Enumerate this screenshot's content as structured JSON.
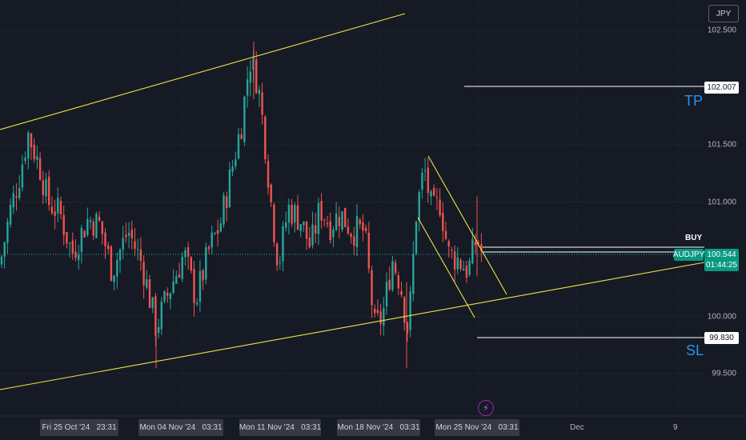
{
  "currency_button": "JPY",
  "symbol": "AUDJPY",
  "countdown": "01:44:25",
  "current_price": "100.544",
  "buy_label": "BUY",
  "tp_label": "TP",
  "sl_label": "SL",
  "tp_price": "102.007",
  "sl_price": "99.830",
  "colors": {
    "background": "#161a25",
    "bull": "#26a69a",
    "bear": "#ef5350",
    "trendline": "#f0e442",
    "accent_blue": "#2196f3",
    "price_green": "#089981"
  },
  "y_axis_labels": [
    "102.500",
    "101.500",
    "101.000",
    "100.000",
    "99.500"
  ],
  "x_axis_labels": [
    "Fri 25 Oct '24   23:31",
    "Mon 04 Nov '24   03:31",
    "Mon 11 Nov '24   03:31",
    "Mon 18 Nov '24   03:31",
    "Mon 25 Nov '24   03:31",
    "Dec",
    "9"
  ],
  "chart_data": {
    "type": "candlestick",
    "symbol": "AUDJPY",
    "ylim": [
      99.2,
      102.8
    ],
    "y_ticks": [
      102.5,
      101.5,
      101.0,
      100.0,
      99.5
    ],
    "grid": true,
    "last_price": 100.544,
    "take_profit": 102.007,
    "stop_loss": 99.83,
    "close_path": [
      [
        0,
        100.45
      ],
      [
        12,
        100.9
      ],
      [
        25,
        101.25
      ],
      [
        35,
        101.6
      ],
      [
        50,
        101.3
      ],
      [
        60,
        101.0
      ],
      [
        75,
        100.9
      ],
      [
        90,
        100.55
      ],
      [
        110,
        100.85
      ],
      [
        125,
        100.8
      ],
      [
        140,
        100.4
      ],
      [
        160,
        100.75
      ],
      [
        178,
        100.45
      ],
      [
        195,
        99.9
      ],
      [
        210,
        100.2
      ],
      [
        230,
        100.55
      ],
      [
        245,
        100.15
      ],
      [
        262,
        100.6
      ],
      [
        275,
        100.8
      ],
      [
        290,
        101.3
      ],
      [
        302,
        101.7
      ],
      [
        312,
        102.25
      ],
      [
        322,
        102.05
      ],
      [
        330,
        101.6
      ],
      [
        340,
        100.9
      ],
      [
        348,
        100.45
      ],
      [
        360,
        100.95
      ],
      [
        375,
        100.85
      ],
      [
        388,
        100.6
      ],
      [
        400,
        100.95
      ],
      [
        412,
        100.8
      ],
      [
        425,
        100.9
      ],
      [
        440,
        100.75
      ],
      [
        455,
        100.75
      ],
      [
        468,
        99.9
      ],
      [
        478,
        100.0
      ],
      [
        490,
        100.5
      ],
      [
        500,
        100.3
      ],
      [
        510,
        99.85
      ],
      [
        520,
        100.9
      ],
      [
        530,
        101.3
      ],
      [
        540,
        100.9
      ],
      [
        550,
        101.0
      ],
      [
        560,
        100.55
      ],
      [
        572,
        100.5
      ],
      [
        585,
        100.4
      ],
      [
        596,
        100.7
      ],
      [
        604,
        100.5
      ]
    ]
  }
}
